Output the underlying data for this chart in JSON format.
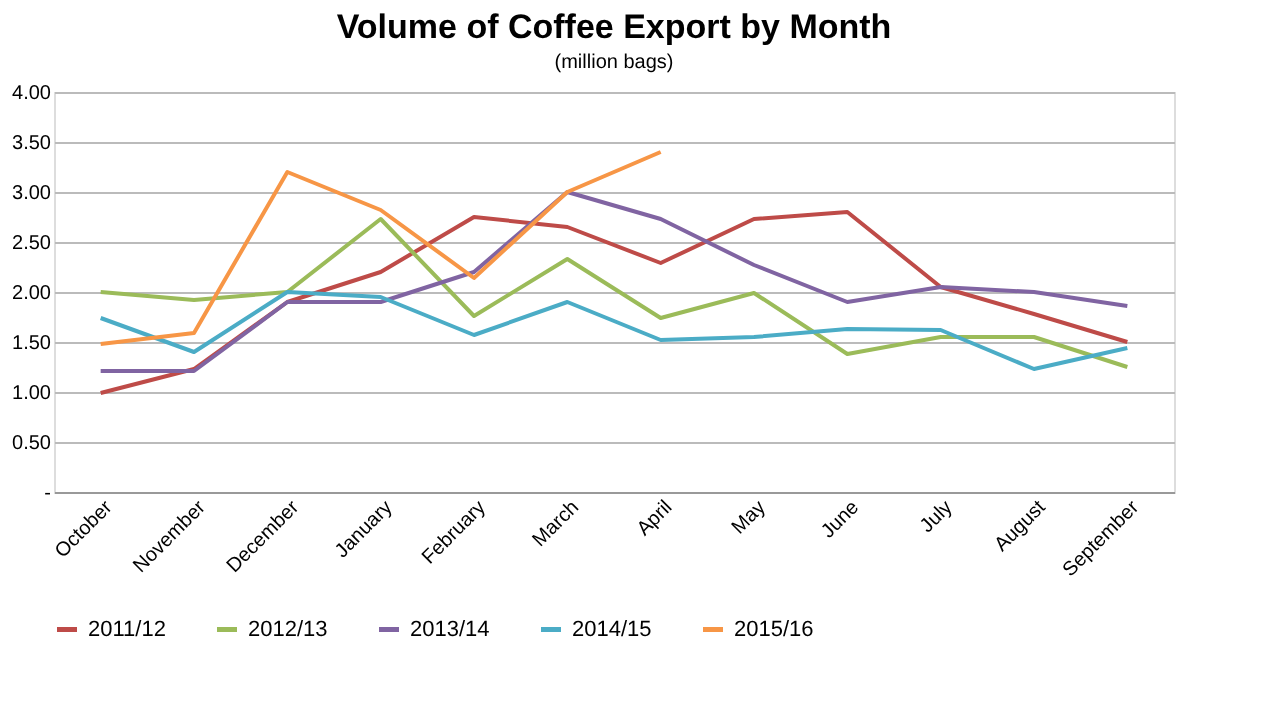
{
  "chart_data": {
    "type": "line",
    "title": "Volume of Coffee Export by Month",
    "subtitle": "(million bags)",
    "categories": [
      "October",
      "November",
      "December",
      "January",
      "February",
      "March",
      "April",
      "May",
      "June",
      "July",
      "August",
      "September"
    ],
    "series": [
      {
        "name": "2011/12",
        "color": "#be4b48",
        "values": [
          0.99,
          1.23,
          1.9,
          2.2,
          2.75,
          2.65,
          2.29,
          2.73,
          2.8,
          2.05,
          1.78,
          1.5
        ]
      },
      {
        "name": "2012/13",
        "color": "#9bbb59",
        "values": [
          2.0,
          1.92,
          2.0,
          2.73,
          1.76,
          2.33,
          1.74,
          1.99,
          1.38,
          1.55,
          1.55,
          1.25
        ]
      },
      {
        "name": "2013/14",
        "color": "#8064a2",
        "values": [
          1.21,
          1.21,
          1.9,
          1.9,
          2.2,
          3.0,
          2.73,
          2.27,
          1.9,
          2.05,
          2.0,
          1.86
        ]
      },
      {
        "name": "2014/15",
        "color": "#4bacc6",
        "values": [
          1.74,
          1.4,
          2.0,
          1.95,
          1.57,
          1.9,
          1.52,
          1.55,
          1.63,
          1.62,
          1.23,
          1.44
        ]
      },
      {
        "name": "2015/16",
        "color": "#f79646",
        "values": [
          1.48,
          1.59,
          3.2,
          2.82,
          2.14,
          3.0,
          3.4,
          null,
          null,
          null,
          null,
          null
        ]
      }
    ],
    "ylim": [
      0,
      4
    ],
    "yticks": [
      {
        "value": 0,
        "label": "-"
      },
      {
        "value": 0.5,
        "label": "0.50"
      },
      {
        "value": 1,
        "label": "1.00"
      },
      {
        "value": 1.5,
        "label": "1.50"
      },
      {
        "value": 2,
        "label": "2.00"
      },
      {
        "value": 2.5,
        "label": "2.50"
      },
      {
        "value": 3,
        "label": "3.00"
      },
      {
        "value": 3.5,
        "label": "3.50"
      },
      {
        "value": 4,
        "label": "4.00"
      }
    ],
    "grid": "y",
    "legend": "bottom",
    "marker": "none",
    "line_style": "solid"
  }
}
